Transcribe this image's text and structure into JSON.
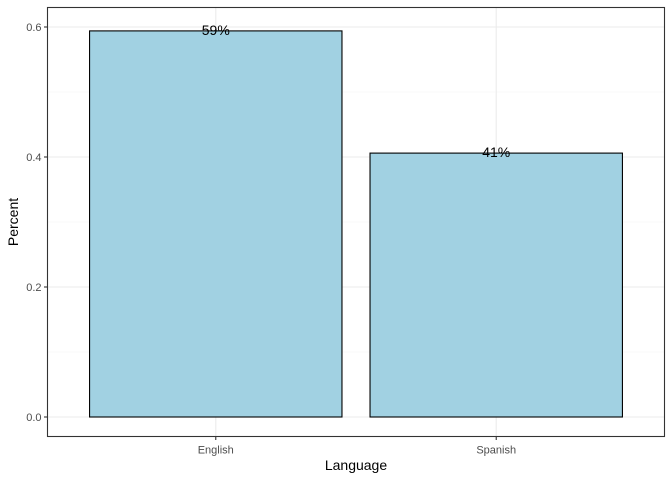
{
  "chart_data": {
    "type": "bar",
    "categories": [
      "English",
      "Spanish"
    ],
    "values": [
      0.594,
      0.406
    ],
    "data_labels": [
      "59%",
      "41%"
    ],
    "xlabel": "Language",
    "ylabel": "Percent",
    "ylim": [
      0,
      0.6
    ],
    "yticks": [
      0.0,
      0.2,
      0.4,
      0.6
    ],
    "ytick_labels": [
      "0.0",
      "0.2",
      "0.4",
      "0.6"
    ],
    "grid": true,
    "legend": "none",
    "colors": {
      "bar_fill": "#a1d1e2",
      "bar_stroke": "#000000",
      "panel_border": "#333333",
      "grid_major": "#ebebeb",
      "grid_minor": "#f5f5f5"
    }
  }
}
